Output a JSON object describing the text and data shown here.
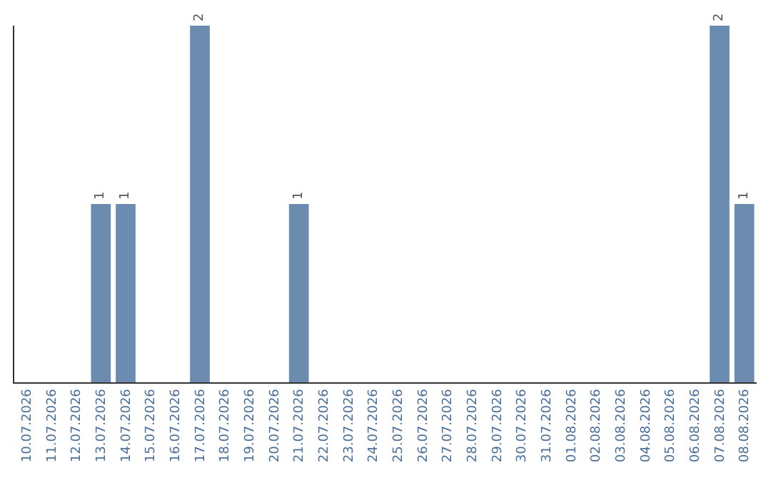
{
  "chart_data": {
    "type": "bar",
    "categories": [
      "10.07.2026",
      "11.07.2026",
      "12.07.2026",
      "13.07.2026",
      "14.07.2026",
      "15.07.2026",
      "16.07.2026",
      "17.07.2026",
      "18.07.2026",
      "19.07.2026",
      "20.07.2026",
      "21.07.2026",
      "22.07.2026",
      "23.07.2026",
      "24.07.2026",
      "25.07.2026",
      "26.07.2026",
      "27.07.2026",
      "28.07.2026",
      "29.07.2026",
      "30.07.2026",
      "31.07.2026",
      "01.08.2026",
      "02.08.2026",
      "03.08.2026",
      "04.08.2026",
      "05.08.2026",
      "06.08.2026",
      "07.08.2026",
      "08.08.2026"
    ],
    "values": [
      0,
      0,
      0,
      1,
      1,
      0,
      0,
      2,
      0,
      0,
      0,
      1,
      0,
      0,
      0,
      0,
      0,
      0,
      0,
      0,
      0,
      0,
      0,
      0,
      0,
      0,
      0,
      0,
      2,
      1
    ],
    "value_labels": [
      null,
      null,
      null,
      "1",
      "1",
      null,
      null,
      "2",
      null,
      null,
      null,
      "1",
      null,
      null,
      null,
      null,
      null,
      null,
      null,
      null,
      null,
      null,
      null,
      null,
      null,
      null,
      null,
      null,
      "2",
      "1"
    ],
    "color": "#6b8caf",
    "legend": false,
    "tick_labels": "x"
  }
}
